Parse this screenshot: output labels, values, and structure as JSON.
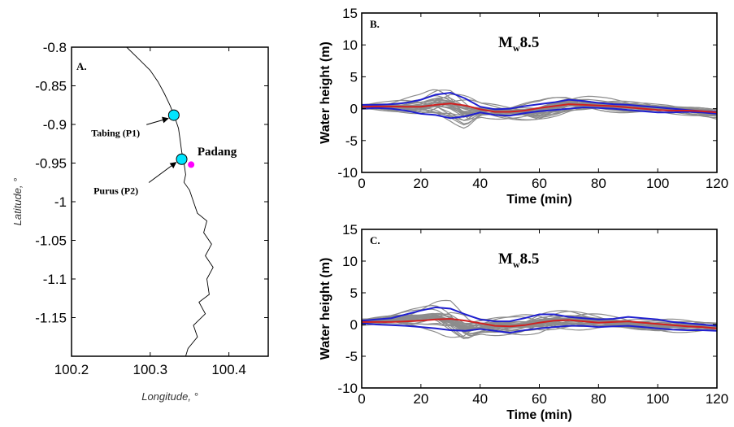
{
  "chart_data": [
    {
      "panel": "A.",
      "type": "scatter",
      "xlabel": "Longitude, °",
      "ylabel": "Latitude, °",
      "xlim": [
        100.2,
        100.45
      ],
      "ylim": [
        -1.2,
        -0.8
      ],
      "xticks": [
        100.2,
        100.3,
        100.4
      ],
      "xtick_labels": [
        "100.2",
        "100.3",
        "100.4"
      ],
      "yticks": [
        -0.8,
        -0.85,
        -0.9,
        -0.95,
        -1,
        -1.05,
        -1.1,
        -1.15
      ],
      "ytick_labels": [
        "-0.8",
        "-0.85",
        "-0.9",
        "-0.95",
        "-1",
        "-1.05",
        "-1.1",
        "-1.15"
      ],
      "grid": false,
      "coastline": [
        [
          100.27,
          -0.8
        ],
        [
          100.285,
          -0.815
        ],
        [
          100.3,
          -0.83
        ],
        [
          100.31,
          -0.845
        ],
        [
          100.318,
          -0.86
        ],
        [
          100.325,
          -0.875
        ],
        [
          100.331,
          -0.89
        ],
        [
          100.336,
          -0.905
        ],
        [
          100.338,
          -0.92
        ],
        [
          100.34,
          -0.935
        ],
        [
          100.343,
          -0.95
        ],
        [
          100.345,
          -0.965
        ],
        [
          100.343,
          -0.975
        ],
        [
          100.35,
          -0.985
        ],
        [
          100.355,
          -1.0
        ],
        [
          100.36,
          -1.015
        ],
        [
          100.372,
          -1.025
        ],
        [
          100.368,
          -1.04
        ],
        [
          100.378,
          -1.055
        ],
        [
          100.37,
          -1.07
        ],
        [
          100.38,
          -1.085
        ],
        [
          100.372,
          -1.1
        ],
        [
          100.375,
          -1.12
        ],
        [
          100.362,
          -1.13
        ],
        [
          100.37,
          -1.145
        ],
        [
          100.355,
          -1.16
        ],
        [
          100.36,
          -1.175
        ],
        [
          100.348,
          -1.19
        ],
        [
          100.345,
          -1.2
        ]
      ],
      "stations": [
        {
          "name": "Tabing (P1)",
          "lon": 100.33,
          "lat": -0.888,
          "color": "#00e5ff",
          "label_lon": 100.225,
          "label_lat": -0.915
        },
        {
          "name": "Purus (P2)",
          "lon": 100.34,
          "lat": -0.945,
          "color": "#00e5ff",
          "label_lon": 100.228,
          "label_lat": -0.99
        }
      ],
      "city": {
        "name": "Padang",
        "lon": 100.352,
        "lat": -0.952,
        "color": "#ff00ff",
        "label_lon": 100.36,
        "label_lat": -0.94
      }
    },
    {
      "panel": "B.",
      "type": "line",
      "annotation": "Mw8.5",
      "annotation_main": "M",
      "annotation_sub": "w",
      "annotation_tail": "8.5",
      "xlabel": "Time (min)",
      "ylabel": "Water height (m)",
      "xlim": [
        0,
        120
      ],
      "ylim": [
        -10,
        15
      ],
      "xticks": [
        0,
        20,
        40,
        60,
        80,
        100,
        120
      ],
      "yticks": [
        -10,
        -5,
        0,
        5,
        10,
        15
      ],
      "grid": false,
      "ensemble_color": "#8c8c8c",
      "ensemble_count": 30,
      "ensemble_envelope_x": [
        0,
        10,
        20,
        25,
        30,
        35,
        40,
        50,
        60,
        70,
        80,
        90,
        100,
        110,
        120
      ],
      "ensemble_envelope_max": [
        1.0,
        1.5,
        2.5,
        4.0,
        4.5,
        3.5,
        1.5,
        1.0,
        1.5,
        3.0,
        2.0,
        1.5,
        1.0,
        1.0,
        0.5
      ],
      "ensemble_envelope_min": [
        -0.5,
        -1.0,
        -2.0,
        -2.5,
        -3.5,
        -4.5,
        -2.0,
        -2.0,
        -2.5,
        -1.5,
        -1.0,
        -1.0,
        -1.0,
        -1.5,
        -2.0
      ],
      "series": [
        {
          "color": "#1f1fd0",
          "x": [
            0,
            5,
            10,
            15,
            20,
            25,
            30,
            35,
            40,
            45,
            50,
            55,
            60,
            65,
            70,
            75,
            80,
            85,
            90,
            95,
            100,
            105,
            110,
            115,
            120
          ],
          "y": [
            0.6,
            0.6,
            0.7,
            0.9,
            1.4,
            2.2,
            2.5,
            1.6,
            0.3,
            -0.1,
            0.0,
            0.4,
            0.7,
            1.0,
            1.4,
            1.2,
            0.9,
            0.7,
            0.6,
            0.4,
            0.2,
            0.0,
            -0.2,
            -0.4,
            -0.5
          ]
        },
        {
          "color": "#1f1fd0",
          "x": [
            0,
            5,
            10,
            15,
            20,
            25,
            30,
            35,
            40,
            45,
            50,
            55,
            60,
            65,
            70,
            75,
            80,
            85,
            90,
            95,
            100,
            105,
            110,
            115,
            120
          ],
          "y": [
            0.0,
            0.1,
            0.0,
            -0.3,
            -0.8,
            -1.0,
            -1.5,
            -1.2,
            -0.6,
            -1.0,
            -1.1,
            -0.7,
            -0.4,
            -0.2,
            0.0,
            0.2,
            0.1,
            0.0,
            -0.2,
            -0.4,
            -0.6,
            -0.6,
            -0.5,
            -0.6,
            -0.8
          ]
        },
        {
          "color": "#d02020",
          "x": [
            0,
            5,
            10,
            15,
            20,
            25,
            30,
            35,
            40,
            45,
            50,
            55,
            60,
            65,
            70,
            75,
            80,
            85,
            90,
            95,
            100,
            105,
            110,
            115,
            120
          ],
          "y": [
            0.3,
            0.35,
            0.35,
            0.3,
            0.3,
            0.6,
            0.8,
            0.5,
            -0.1,
            -0.5,
            -0.5,
            -0.3,
            0.1,
            0.4,
            0.7,
            0.6,
            0.5,
            0.4,
            0.2,
            0.0,
            -0.2,
            -0.3,
            -0.3,
            -0.4,
            -0.6
          ]
        }
      ]
    },
    {
      "panel": "C.",
      "type": "line",
      "annotation": "Mw8.5",
      "annotation_main": "M",
      "annotation_sub": "w",
      "annotation_tail": "8.5",
      "xlabel": "Time (min)",
      "ylabel": "Water height (m)",
      "xlim": [
        0,
        120
      ],
      "ylim": [
        -10,
        15
      ],
      "xticks": [
        0,
        20,
        40,
        60,
        80,
        100,
        120
      ],
      "yticks": [
        -10,
        -5,
        0,
        5,
        10,
        15
      ],
      "grid": false,
      "ensemble_color": "#8c8c8c",
      "ensemble_count": 30,
      "ensemble_envelope_x": [
        0,
        10,
        20,
        25,
        30,
        35,
        40,
        50,
        60,
        70,
        80,
        90,
        100,
        110,
        120
      ],
      "ensemble_envelope_max": [
        1.2,
        2.0,
        3.0,
        4.0,
        4.5,
        3.0,
        1.5,
        1.5,
        2.5,
        2.5,
        2.0,
        1.5,
        1.5,
        1.0,
        0.5
      ],
      "ensemble_envelope_min": [
        -0.5,
        -0.5,
        -1.0,
        -1.5,
        -3.0,
        -4.0,
        -2.0,
        -2.0,
        -2.5,
        -1.5,
        -1.0,
        -1.0,
        -1.5,
        -1.5,
        -1.5
      ],
      "series": [
        {
          "color": "#1f1fd0",
          "x": [
            0,
            5,
            10,
            15,
            20,
            25,
            30,
            35,
            40,
            45,
            50,
            55,
            60,
            65,
            70,
            75,
            80,
            85,
            90,
            95,
            100,
            105,
            110,
            115,
            120
          ],
          "y": [
            0.6,
            0.8,
            1.0,
            1.6,
            2.2,
            2.7,
            2.5,
            1.6,
            0.8,
            0.5,
            0.5,
            1.0,
            1.6,
            1.6,
            1.2,
            1.0,
            0.8,
            0.9,
            1.2,
            1.0,
            0.8,
            0.4,
            0.2,
            0.0,
            -0.2
          ]
        },
        {
          "color": "#1f1fd0",
          "x": [
            0,
            5,
            10,
            15,
            20,
            25,
            30,
            35,
            40,
            45,
            50,
            55,
            60,
            65,
            70,
            75,
            80,
            85,
            90,
            95,
            100,
            105,
            110,
            115,
            120
          ],
          "y": [
            0.2,
            0.0,
            -0.1,
            -0.2,
            -0.4,
            -0.6,
            -0.9,
            -1.0,
            -0.7,
            -1.0,
            -1.3,
            -0.9,
            -0.6,
            -0.4,
            -0.2,
            -0.2,
            -0.4,
            -0.3,
            -0.2,
            -0.4,
            -0.6,
            -0.8,
            -0.9,
            -0.9,
            -1.0
          ]
        },
        {
          "color": "#d02020",
          "x": [
            0,
            5,
            10,
            15,
            20,
            25,
            30,
            35,
            40,
            45,
            50,
            55,
            60,
            65,
            70,
            75,
            80,
            85,
            90,
            95,
            100,
            105,
            110,
            115,
            120
          ],
          "y": [
            0.4,
            0.4,
            0.4,
            0.5,
            0.6,
            0.8,
            0.9,
            0.6,
            0.2,
            -0.2,
            -0.3,
            -0.1,
            0.3,
            0.6,
            0.7,
            0.5,
            0.3,
            0.4,
            0.5,
            0.3,
            0.1,
            -0.1,
            -0.3,
            -0.4,
            -0.6
          ]
        }
      ]
    }
  ]
}
